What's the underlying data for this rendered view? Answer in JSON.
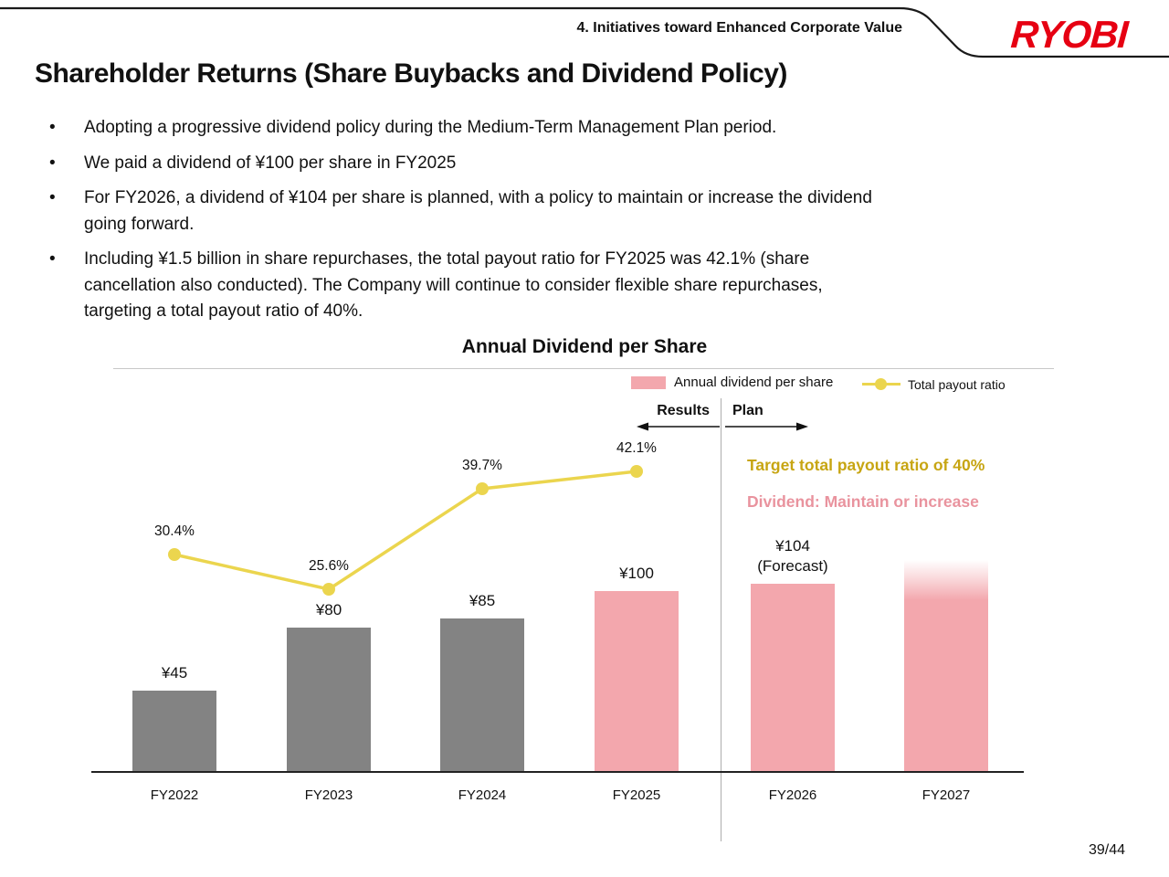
{
  "colors": {
    "brand-red": "#E60012",
    "bar-gray": "#838383",
    "bar-pink": "#F3A7AD",
    "line-yellow": "#EBD54E",
    "gold-text": "#C7A512",
    "pink-text": "#E9939E"
  },
  "header": {
    "section_label": "4. Initiatives toward Enhanced Corporate Value",
    "logo_text": "RYOBI"
  },
  "title": "Shareholder Returns (Share Buybacks and Dividend Policy)",
  "bullets": [
    "Adopting a progressive dividend policy during the Medium-Term Management Plan period.",
    "We paid a dividend of ¥100 per share in FY2025",
    "For FY2026, a dividend of ¥104 per share is planned, with a policy to maintain or increase the dividend\ngoing forward.",
    "Including ¥1.5 billion in share repurchases, the total payout ratio for FY2025 was 42.1% (share\ncancellation also conducted). The Company will continue to consider flexible share repurchases,\ntargeting a total payout ratio of 40%."
  ],
  "chart": {
    "title": "Annual Dividend per Share",
    "legend": [
      {
        "label": "Annual dividend per share",
        "marker": "pink-bar-swatch"
      },
      {
        "label": "Total payout ratio",
        "marker": "yellow-line-dot"
      }
    ],
    "results_label": "Results",
    "plan_label": "Plan",
    "annotations": {
      "target": "Target total payout ratio of 40%",
      "dividend": "Dividend: Maintain or increase"
    }
  },
  "chart_data": {
    "type": "bar",
    "subtype": "bar + line combo",
    "title": "Annual Dividend per Share",
    "categories": [
      "FY2022",
      "FY2023",
      "FY2024",
      "FY2025",
      "FY2026",
      "FY2027"
    ],
    "series": [
      {
        "name": "Annual dividend per share",
        "type": "bar",
        "unit": "JPY per share",
        "values": [
          45,
          80,
          85,
          100,
          104,
          117
        ],
        "bar_labels": [
          "¥45",
          "¥80",
          "¥85",
          "¥100",
          "¥104\n(Forecast)",
          ""
        ],
        "colors": [
          "#838383",
          "#838383",
          "#838383",
          "#F3A7AD",
          "#F3A7AD",
          "#F3A7AD"
        ],
        "note": "FY2027 bar is unlabeled with a faded top edge (open-ended, maintain or increase); its height (~117) is estimated from pixels"
      },
      {
        "name": "Total payout ratio",
        "type": "line",
        "unit": "%",
        "values": [
          30.4,
          25.6,
          39.7,
          42.1,
          null,
          null
        ],
        "point_labels": [
          "30.4%",
          "25.6%",
          "39.7%",
          "42.1%",
          "",
          ""
        ],
        "color": "#EBD54E"
      }
    ],
    "fade_top_categories": [
      "FY2027"
    ],
    "ylim_bar": [
      0,
      130
    ],
    "ylim_ratio": [
      0,
      50
    ],
    "grid": false,
    "legend_position": "top-right",
    "zone_labels": {
      "left": "Results",
      "right": "Plan"
    }
  },
  "footer": {
    "page_number": "39/44"
  }
}
